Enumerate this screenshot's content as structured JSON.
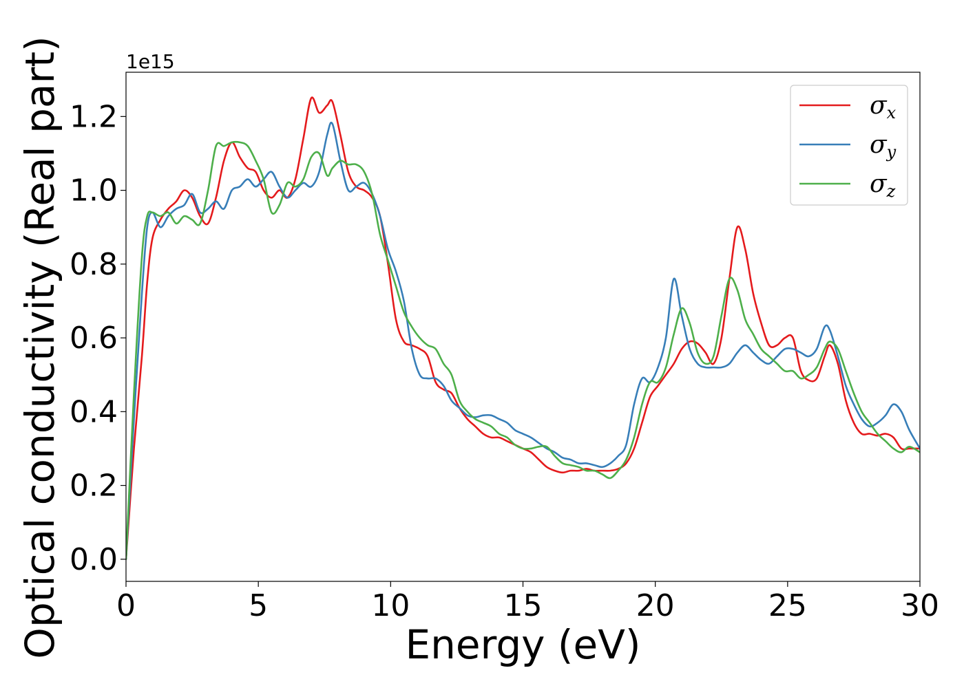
{
  "chart_data": {
    "type": "line",
    "xlabel": "Energy (eV)",
    "ylabel": "Optical conductivity (Real part)",
    "y_offset_label": "1e15",
    "xlim": [
      0,
      30
    ],
    "ylim": [
      -0.06,
      1.32
    ],
    "xticks": [
      0,
      5,
      10,
      15,
      20,
      25,
      30
    ],
    "xtick_labels": [
      "0",
      "5",
      "10",
      "15",
      "20",
      "25",
      "30"
    ],
    "yticks": [
      0.0,
      0.2,
      0.4,
      0.6,
      0.8,
      1.0,
      1.2
    ],
    "ytick_labels": [
      "0.0",
      "0.2",
      "0.4",
      "0.6",
      "0.8",
      "1.0",
      "1.2"
    ],
    "grid": false,
    "legend_position": "top-right",
    "series": [
      {
        "name": "σx",
        "symbol": "σ",
        "subscript": "x",
        "color": "#e41a1c",
        "x": [
          0,
          0.3,
          0.6,
          0.8,
          1.0,
          1.3,
          1.6,
          1.9,
          2.2,
          2.5,
          2.8,
          3.1,
          3.4,
          3.7,
          4.0,
          4.3,
          4.6,
          4.9,
          5.2,
          5.5,
          5.8,
          6.1,
          6.4,
          6.7,
          7.0,
          7.3,
          7.6,
          7.8,
          8.1,
          8.4,
          8.7,
          9.0,
          9.3,
          9.6,
          9.9,
          10.2,
          10.5,
          10.8,
          11.1,
          11.4,
          11.7,
          12.0,
          12.3,
          12.6,
          12.9,
          13.2,
          13.5,
          13.8,
          14.1,
          14.4,
          14.7,
          15.0,
          15.3,
          15.6,
          15.9,
          16.2,
          16.5,
          16.8,
          17.1,
          17.4,
          17.7,
          18.0,
          18.3,
          18.6,
          18.9,
          19.2,
          19.5,
          19.8,
          20.1,
          20.4,
          20.7,
          21.0,
          21.3,
          21.6,
          21.9,
          22.2,
          22.5,
          22.8,
          23.1,
          23.4,
          23.7,
          24.0,
          24.3,
          24.6,
          24.9,
          25.2,
          25.5,
          25.8,
          26.1,
          26.4,
          26.6,
          26.9,
          27.2,
          27.5,
          27.8,
          28.1,
          28.4,
          28.7,
          29.0,
          29.3,
          29.6,
          30.0
        ],
        "y": [
          0.0,
          0.3,
          0.55,
          0.75,
          0.87,
          0.92,
          0.95,
          0.97,
          1.0,
          0.98,
          0.93,
          0.91,
          0.98,
          1.08,
          1.13,
          1.09,
          1.06,
          1.05,
          1.0,
          0.98,
          1.0,
          0.98,
          1.03,
          1.14,
          1.25,
          1.21,
          1.23,
          1.24,
          1.15,
          1.05,
          1.01,
          1.0,
          0.98,
          0.93,
          0.8,
          0.65,
          0.59,
          0.58,
          0.57,
          0.55,
          0.48,
          0.46,
          0.45,
          0.41,
          0.38,
          0.36,
          0.34,
          0.33,
          0.33,
          0.32,
          0.31,
          0.3,
          0.29,
          0.27,
          0.25,
          0.24,
          0.235,
          0.24,
          0.24,
          0.245,
          0.24,
          0.24,
          0.24,
          0.245,
          0.26,
          0.3,
          0.37,
          0.44,
          0.47,
          0.5,
          0.53,
          0.57,
          0.59,
          0.585,
          0.56,
          0.53,
          0.6,
          0.76,
          0.9,
          0.84,
          0.72,
          0.64,
          0.58,
          0.58,
          0.6,
          0.6,
          0.51,
          0.485,
          0.49,
          0.55,
          0.58,
          0.53,
          0.43,
          0.37,
          0.34,
          0.34,
          0.335,
          0.34,
          0.33,
          0.3,
          0.3,
          0.3
        ]
      },
      {
        "name": "σy",
        "symbol": "σ",
        "subscript": "y",
        "color": "#377eb8",
        "x": [
          0,
          0.3,
          0.6,
          0.8,
          1.0,
          1.3,
          1.6,
          1.9,
          2.2,
          2.5,
          2.8,
          3.1,
          3.4,
          3.7,
          4.0,
          4.3,
          4.6,
          4.9,
          5.2,
          5.5,
          5.8,
          6.1,
          6.4,
          6.7,
          7.0,
          7.3,
          7.6,
          7.8,
          8.1,
          8.4,
          8.7,
          9.0,
          9.3,
          9.6,
          9.9,
          10.2,
          10.5,
          10.8,
          11.1,
          11.4,
          11.7,
          12.0,
          12.3,
          12.6,
          12.9,
          13.2,
          13.5,
          13.8,
          14.1,
          14.4,
          14.7,
          15.0,
          15.3,
          15.6,
          15.9,
          16.2,
          16.5,
          16.8,
          17.1,
          17.4,
          17.7,
          18.0,
          18.3,
          18.6,
          18.9,
          19.2,
          19.5,
          19.8,
          20.1,
          20.4,
          20.7,
          21.0,
          21.3,
          21.6,
          21.9,
          22.2,
          22.5,
          22.8,
          23.1,
          23.4,
          23.7,
          24.0,
          24.3,
          24.6,
          24.9,
          25.2,
          25.5,
          25.8,
          26.1,
          26.4,
          26.6,
          26.9,
          27.2,
          27.5,
          27.8,
          28.1,
          28.4,
          28.7,
          29.0,
          29.3,
          29.6,
          30.0
        ],
        "y": [
          0.0,
          0.38,
          0.72,
          0.9,
          0.94,
          0.9,
          0.93,
          0.95,
          0.96,
          0.99,
          0.94,
          0.95,
          0.97,
          0.95,
          1.0,
          1.01,
          1.03,
          1.01,
          1.03,
          1.05,
          1.01,
          0.98,
          1.0,
          1.02,
          1.01,
          1.05,
          1.15,
          1.18,
          1.08,
          1.0,
          1.01,
          1.02,
          0.99,
          0.93,
          0.84,
          0.78,
          0.7,
          0.57,
          0.5,
          0.49,
          0.49,
          0.47,
          0.43,
          0.41,
          0.39,
          0.385,
          0.39,
          0.39,
          0.38,
          0.37,
          0.35,
          0.34,
          0.33,
          0.315,
          0.3,
          0.29,
          0.275,
          0.27,
          0.26,
          0.26,
          0.255,
          0.25,
          0.26,
          0.28,
          0.31,
          0.42,
          0.49,
          0.48,
          0.52,
          0.6,
          0.76,
          0.66,
          0.57,
          0.53,
          0.52,
          0.52,
          0.52,
          0.53,
          0.56,
          0.58,
          0.56,
          0.54,
          0.53,
          0.55,
          0.57,
          0.57,
          0.56,
          0.55,
          0.57,
          0.63,
          0.62,
          0.55,
          0.47,
          0.42,
          0.38,
          0.36,
          0.37,
          0.39,
          0.42,
          0.4,
          0.35,
          0.3
        ]
      },
      {
        "name": "σz",
        "symbol": "σ",
        "subscript": "z",
        "color": "#4daf4a",
        "x": [
          0,
          0.3,
          0.6,
          0.8,
          1.0,
          1.3,
          1.6,
          1.9,
          2.2,
          2.5,
          2.8,
          3.1,
          3.4,
          3.7,
          4.0,
          4.3,
          4.6,
          4.9,
          5.2,
          5.5,
          5.8,
          6.1,
          6.4,
          6.7,
          7.0,
          7.3,
          7.6,
          7.8,
          8.1,
          8.4,
          8.7,
          9.0,
          9.3,
          9.6,
          9.9,
          10.2,
          10.5,
          10.8,
          11.1,
          11.4,
          11.7,
          12.0,
          12.3,
          12.6,
          12.9,
          13.2,
          13.5,
          13.8,
          14.1,
          14.4,
          14.7,
          15.0,
          15.3,
          15.6,
          15.9,
          16.2,
          16.5,
          16.8,
          17.1,
          17.4,
          17.7,
          18.0,
          18.3,
          18.6,
          18.9,
          19.2,
          19.5,
          19.8,
          20.1,
          20.4,
          20.7,
          21.0,
          21.3,
          21.6,
          21.9,
          22.2,
          22.5,
          22.8,
          23.1,
          23.4,
          23.7,
          24.0,
          24.3,
          24.6,
          24.9,
          25.2,
          25.5,
          25.8,
          26.1,
          26.4,
          26.6,
          26.9,
          27.2,
          27.5,
          27.8,
          28.1,
          28.4,
          28.7,
          29.0,
          29.3,
          29.6,
          30.0
        ],
        "y": [
          0.0,
          0.45,
          0.82,
          0.93,
          0.94,
          0.93,
          0.94,
          0.91,
          0.93,
          0.92,
          0.91,
          1.0,
          1.12,
          1.12,
          1.13,
          1.13,
          1.12,
          1.08,
          1.03,
          0.94,
          0.96,
          1.02,
          1.01,
          1.03,
          1.09,
          1.1,
          1.04,
          1.06,
          1.08,
          1.07,
          1.07,
          1.05,
          0.99,
          0.88,
          0.81,
          0.74,
          0.67,
          0.63,
          0.6,
          0.58,
          0.57,
          0.53,
          0.5,
          0.43,
          0.4,
          0.38,
          0.37,
          0.36,
          0.34,
          0.33,
          0.31,
          0.3,
          0.3,
          0.305,
          0.305,
          0.28,
          0.26,
          0.255,
          0.25,
          0.24,
          0.24,
          0.23,
          0.22,
          0.24,
          0.27,
          0.33,
          0.42,
          0.48,
          0.48,
          0.52,
          0.61,
          0.68,
          0.64,
          0.56,
          0.53,
          0.55,
          0.66,
          0.76,
          0.73,
          0.65,
          0.61,
          0.57,
          0.55,
          0.53,
          0.51,
          0.51,
          0.49,
          0.5,
          0.52,
          0.57,
          0.59,
          0.57,
          0.51,
          0.45,
          0.4,
          0.37,
          0.34,
          0.32,
          0.3,
          0.29,
          0.305,
          0.29
        ]
      }
    ]
  }
}
